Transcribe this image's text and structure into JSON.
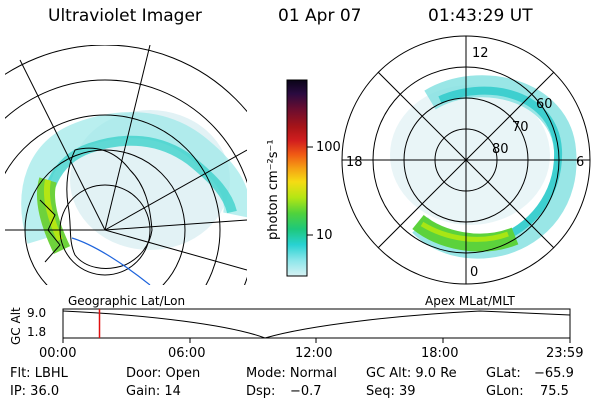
{
  "header": {
    "title": "Ultraviolet Imager",
    "date": "01 Apr 07",
    "time": "01:43:29 UT"
  },
  "colorbar": {
    "unit_label": "photon cm⁻²s⁻¹",
    "ticks": [
      "100",
      "10"
    ],
    "colors": [
      "#0a0418",
      "#2a0a40",
      "#6b0d2f",
      "#a81418",
      "#d21e1e",
      "#f05a14",
      "#f5a014",
      "#f5dc14",
      "#b4e614",
      "#50d23c",
      "#1ec87a",
      "#28d2d2",
      "#8ce6ea",
      "#d7f2f4"
    ]
  },
  "polar_plot": {
    "mlt_labels": {
      "top": "12",
      "left": "18",
      "right": "6",
      "bottom": "0"
    },
    "lat_labels": [
      "60",
      "70",
      "80"
    ]
  },
  "timeline": {
    "left_label": "Geographic Lat/Lon",
    "right_label": "Apex MLat/MLT",
    "y_axis_label": "GC Alt",
    "y_ticks": [
      "9.0",
      "1.8"
    ],
    "x_ticks": [
      "00:00",
      "06:00",
      "12:00",
      "18:00",
      "23:59"
    ],
    "current_time_fraction": 0.072
  },
  "info": {
    "flt": "Flt: LBHL",
    "ip": "IP: 36.0",
    "door": "Door: Open",
    "gain": "Gain: 14",
    "mode": "Mode: Normal",
    "dsp": "Dsp:",
    "dsp_value": "−0.7",
    "gc_alt": "GC Alt: 9.0 Re",
    "seq": "Seq: 39",
    "glat": "GLat:",
    "glat_value": "−65.9",
    "glon": "GLon:",
    "glon_value": "75.5"
  }
}
